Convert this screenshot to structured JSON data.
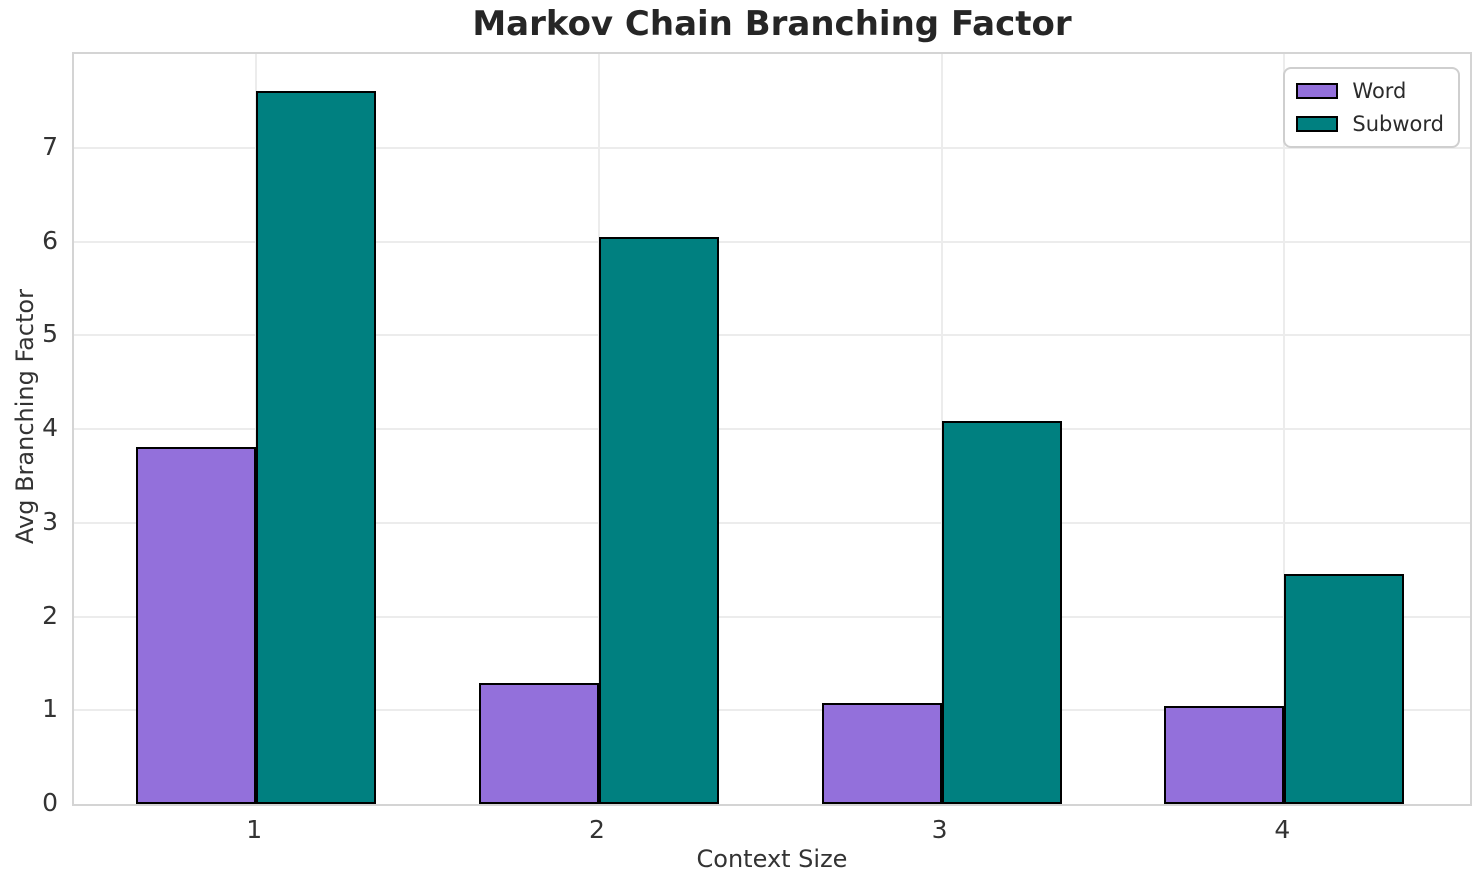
{
  "title": "Markov Chain Branching Factor",
  "chart_data": {
    "type": "bar",
    "categories": [
      "1",
      "2",
      "3",
      "4"
    ],
    "series": [
      {
        "name": "Word",
        "color": "#9370DB",
        "values": [
          3.81,
          1.29,
          1.08,
          1.04
        ]
      },
      {
        "name": "Subword",
        "color": "#008080",
        "values": [
          7.6,
          6.05,
          4.08,
          2.45
        ]
      }
    ],
    "xlabel": "Context Size",
    "ylabel": "Avg Branching Factor",
    "ylim": [
      0,
      8
    ],
    "yticks": [
      0,
      1,
      2,
      3,
      4,
      5,
      6,
      7
    ],
    "grid": true,
    "legend_position": "upper-right",
    "bar_edge_color": "#000000"
  },
  "style": {
    "background_color": "#ffffff",
    "grid_color": "#ececec",
    "spine_color": "#d4d4d4",
    "text_color": "#333333"
  }
}
